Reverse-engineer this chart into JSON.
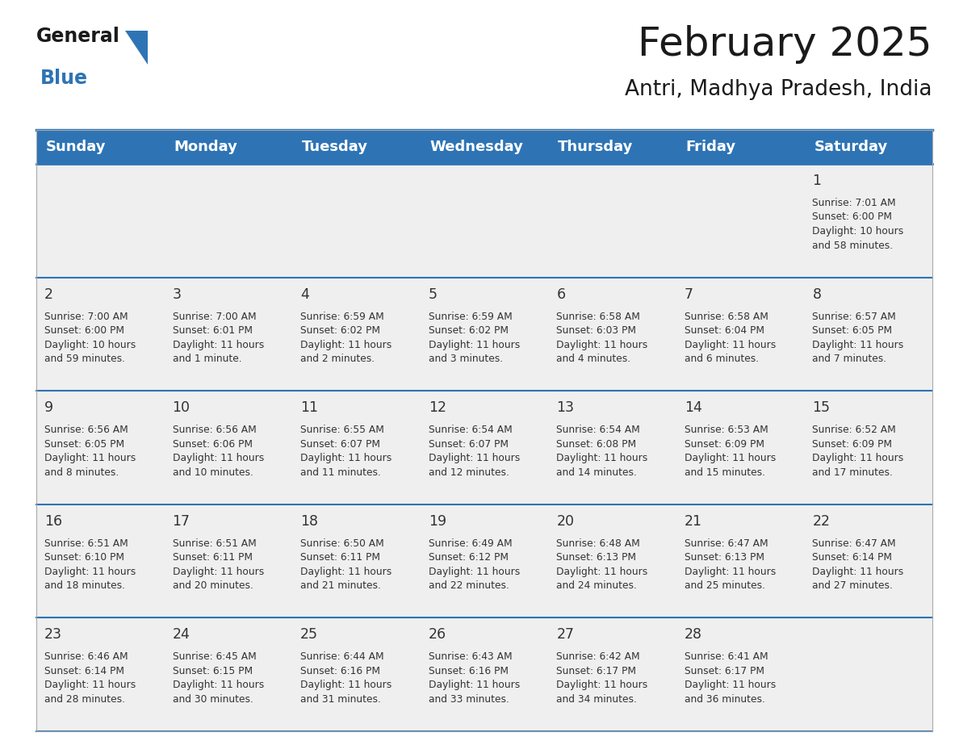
{
  "title": "February 2025",
  "subtitle": "Antri, Madhya Pradesh, India",
  "days_of_week": [
    "Sunday",
    "Monday",
    "Tuesday",
    "Wednesday",
    "Thursday",
    "Friday",
    "Saturday"
  ],
  "header_bg": "#2e74b5",
  "header_text": "#ffffff",
  "cell_bg": "#efefef",
  "separator_color": "#2e74b5",
  "title_color": "#1a1a1a",
  "text_color": "#333333",
  "logo_black": "#1a1a1a",
  "logo_blue": "#2e74b5",
  "calendar_data": [
    [
      null,
      null,
      null,
      null,
      null,
      null,
      {
        "day": 1,
        "sunrise": "7:01 AM",
        "sunset": "6:00 PM",
        "daylight": "10 hours and 58 minutes."
      }
    ],
    [
      {
        "day": 2,
        "sunrise": "7:00 AM",
        "sunset": "6:00 PM",
        "daylight": "10 hours and 59 minutes."
      },
      {
        "day": 3,
        "sunrise": "7:00 AM",
        "sunset": "6:01 PM",
        "daylight": "11 hours and 1 minute."
      },
      {
        "day": 4,
        "sunrise": "6:59 AM",
        "sunset": "6:02 PM",
        "daylight": "11 hours and 2 minutes."
      },
      {
        "day": 5,
        "sunrise": "6:59 AM",
        "sunset": "6:02 PM",
        "daylight": "11 hours and 3 minutes."
      },
      {
        "day": 6,
        "sunrise": "6:58 AM",
        "sunset": "6:03 PM",
        "daylight": "11 hours and 4 minutes."
      },
      {
        "day": 7,
        "sunrise": "6:58 AM",
        "sunset": "6:04 PM",
        "daylight": "11 hours and 6 minutes."
      },
      {
        "day": 8,
        "sunrise": "6:57 AM",
        "sunset": "6:05 PM",
        "daylight": "11 hours and 7 minutes."
      }
    ],
    [
      {
        "day": 9,
        "sunrise": "6:56 AM",
        "sunset": "6:05 PM",
        "daylight": "11 hours and 8 minutes."
      },
      {
        "day": 10,
        "sunrise": "6:56 AM",
        "sunset": "6:06 PM",
        "daylight": "11 hours and 10 minutes."
      },
      {
        "day": 11,
        "sunrise": "6:55 AM",
        "sunset": "6:07 PM",
        "daylight": "11 hours and 11 minutes."
      },
      {
        "day": 12,
        "sunrise": "6:54 AM",
        "sunset": "6:07 PM",
        "daylight": "11 hours and 12 minutes."
      },
      {
        "day": 13,
        "sunrise": "6:54 AM",
        "sunset": "6:08 PM",
        "daylight": "11 hours and 14 minutes."
      },
      {
        "day": 14,
        "sunrise": "6:53 AM",
        "sunset": "6:09 PM",
        "daylight": "11 hours and 15 minutes."
      },
      {
        "day": 15,
        "sunrise": "6:52 AM",
        "sunset": "6:09 PM",
        "daylight": "11 hours and 17 minutes."
      }
    ],
    [
      {
        "day": 16,
        "sunrise": "6:51 AM",
        "sunset": "6:10 PM",
        "daylight": "11 hours and 18 minutes."
      },
      {
        "day": 17,
        "sunrise": "6:51 AM",
        "sunset": "6:11 PM",
        "daylight": "11 hours and 20 minutes."
      },
      {
        "day": 18,
        "sunrise": "6:50 AM",
        "sunset": "6:11 PM",
        "daylight": "11 hours and 21 minutes."
      },
      {
        "day": 19,
        "sunrise": "6:49 AM",
        "sunset": "6:12 PM",
        "daylight": "11 hours and 22 minutes."
      },
      {
        "day": 20,
        "sunrise": "6:48 AM",
        "sunset": "6:13 PM",
        "daylight": "11 hours and 24 minutes."
      },
      {
        "day": 21,
        "sunrise": "6:47 AM",
        "sunset": "6:13 PM",
        "daylight": "11 hours and 25 minutes."
      },
      {
        "day": 22,
        "sunrise": "6:47 AM",
        "sunset": "6:14 PM",
        "daylight": "11 hours and 27 minutes."
      }
    ],
    [
      {
        "day": 23,
        "sunrise": "6:46 AM",
        "sunset": "6:14 PM",
        "daylight": "11 hours and 28 minutes."
      },
      {
        "day": 24,
        "sunrise": "6:45 AM",
        "sunset": "6:15 PM",
        "daylight": "11 hours and 30 minutes."
      },
      {
        "day": 25,
        "sunrise": "6:44 AM",
        "sunset": "6:16 PM",
        "daylight": "11 hours and 31 minutes."
      },
      {
        "day": 26,
        "sunrise": "6:43 AM",
        "sunset": "6:16 PM",
        "daylight": "11 hours and 33 minutes."
      },
      {
        "day": 27,
        "sunrise": "6:42 AM",
        "sunset": "6:17 PM",
        "daylight": "11 hours and 34 minutes."
      },
      {
        "day": 28,
        "sunrise": "6:41 AM",
        "sunset": "6:17 PM",
        "daylight": "11 hours and 36 minutes."
      },
      null
    ]
  ],
  "figsize": [
    11.88,
    9.18
  ],
  "dpi": 100
}
